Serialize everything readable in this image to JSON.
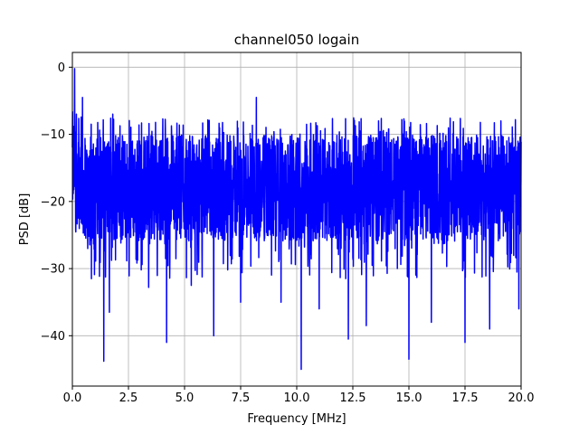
{
  "chart_data": {
    "type": "line",
    "title": "channel050 logain",
    "xlabel": "Frequency [MHz]",
    "ylabel": "PSD [dB]",
    "xlim": [
      0,
      20
    ],
    "ylim": [
      -47.5,
      2.2
    ],
    "x_ticks": [
      0.0,
      2.5,
      5.0,
      7.5,
      10.0,
      12.5,
      15.0,
      17.5,
      20.0
    ],
    "x_tick_labels": [
      "0.0",
      "2.5",
      "5.0",
      "7.5",
      "10.0",
      "12.5",
      "15.0",
      "17.5",
      "20.0"
    ],
    "y_ticks": [
      0,
      -10,
      -20,
      -30,
      -40
    ],
    "y_tick_labels": [
      "0",
      "−10",
      "−20",
      "−30",
      "−40"
    ],
    "grid": true,
    "series": [
      {
        "color": "#0000ff",
        "description_of_shape": "dense noisy PSD trace, mostly between -28 and -8 dB",
        "band_upper_db": -10.5,
        "band_lower_db": -25.5,
        "peaks": [
          {
            "x": 0.1,
            "y": -0.2
          },
          {
            "x": 0.18,
            "y": -7.0
          },
          {
            "x": 0.45,
            "y": -4.5
          },
          {
            "x": 0.85,
            "y": -5.5
          },
          {
            "x": 1.8,
            "y": -7.0
          },
          {
            "x": 4.2,
            "y": -7.5
          },
          {
            "x": 8.2,
            "y": -4.5
          },
          {
            "x": 10.2,
            "y": -6.5
          },
          {
            "x": 15.0,
            "y": -7.0
          },
          {
            "x": 19.1,
            "y": -8.0
          }
        ],
        "dips": [
          {
            "x": 0.85,
            "y": -31.5
          },
          {
            "x": 1.4,
            "y": -43.8
          },
          {
            "x": 1.65,
            "y": -36.5
          },
          {
            "x": 3.4,
            "y": -32.8
          },
          {
            "x": 4.2,
            "y": -41.0
          },
          {
            "x": 5.3,
            "y": -32.5
          },
          {
            "x": 6.3,
            "y": -40.0
          },
          {
            "x": 7.5,
            "y": -35.0
          },
          {
            "x": 9.3,
            "y": -35.0
          },
          {
            "x": 10.2,
            "y": -45.0
          },
          {
            "x": 11.0,
            "y": -36.0
          },
          {
            "x": 12.3,
            "y": -40.5
          },
          {
            "x": 13.1,
            "y": -38.5
          },
          {
            "x": 15.0,
            "y": -43.5
          },
          {
            "x": 16.0,
            "y": -38.0
          },
          {
            "x": 17.5,
            "y": -41.0
          },
          {
            "x": 18.6,
            "y": -39.0
          },
          {
            "x": 19.9,
            "y": -36.0
          }
        ]
      }
    ]
  }
}
